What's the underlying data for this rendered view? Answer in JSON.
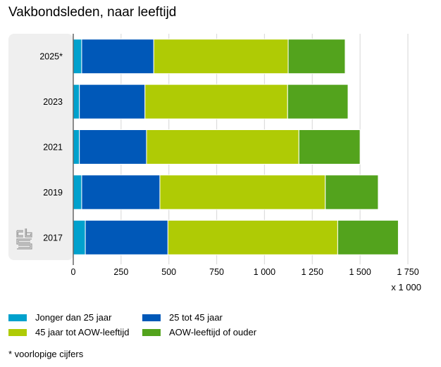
{
  "title": "Vakbondsleden, naar leeftijd",
  "footnote": "* voorlopige cijfers",
  "logo": "cbs-logo-icon",
  "colors": {
    "jonger25": "#00A1CD",
    "25tot45": "#0058B8",
    "45totAOW": "#AFCB05",
    "aow": "#53A31D",
    "panel": "#EFEFEF",
    "grid": "#DDDDDD",
    "axis": "#666666"
  },
  "chart_data": {
    "type": "bar",
    "orientation": "horizontal",
    "stacked": true,
    "title": "Vakbondsleden, naar leeftijd",
    "xlabel": "x 1 000",
    "ylabel": "",
    "xlim": [
      0,
      1750
    ],
    "xticks": [
      0,
      250,
      500,
      750,
      1000,
      1250,
      1500,
      1750
    ],
    "xtick_labels": [
      "0",
      "250",
      "500",
      "750",
      "1 000",
      "1 250",
      "1 500",
      "1 750"
    ],
    "grid": true,
    "legend_position": "bottom",
    "categories": [
      "2025*",
      "2023",
      "2021",
      "2019",
      "2017"
    ],
    "series": [
      {
        "name": "Jonger dan 25 jaar",
        "color": "#00A1CD",
        "values": [
          44,
          32,
          32,
          44,
          63
        ]
      },
      {
        "name": "25 tot 45 jaar",
        "color": "#0058B8",
        "values": [
          377,
          343,
          351,
          409,
          432
        ]
      },
      {
        "name": "45 jaar tot AOW-leeftijd",
        "color": "#AFCB05",
        "values": [
          703,
          746,
          797,
          865,
          888
        ]
      },
      {
        "name": "AOW-leeftijd of ouder",
        "color": "#53A31D",
        "values": [
          298,
          316,
          320,
          277,
          317
        ]
      }
    ]
  }
}
